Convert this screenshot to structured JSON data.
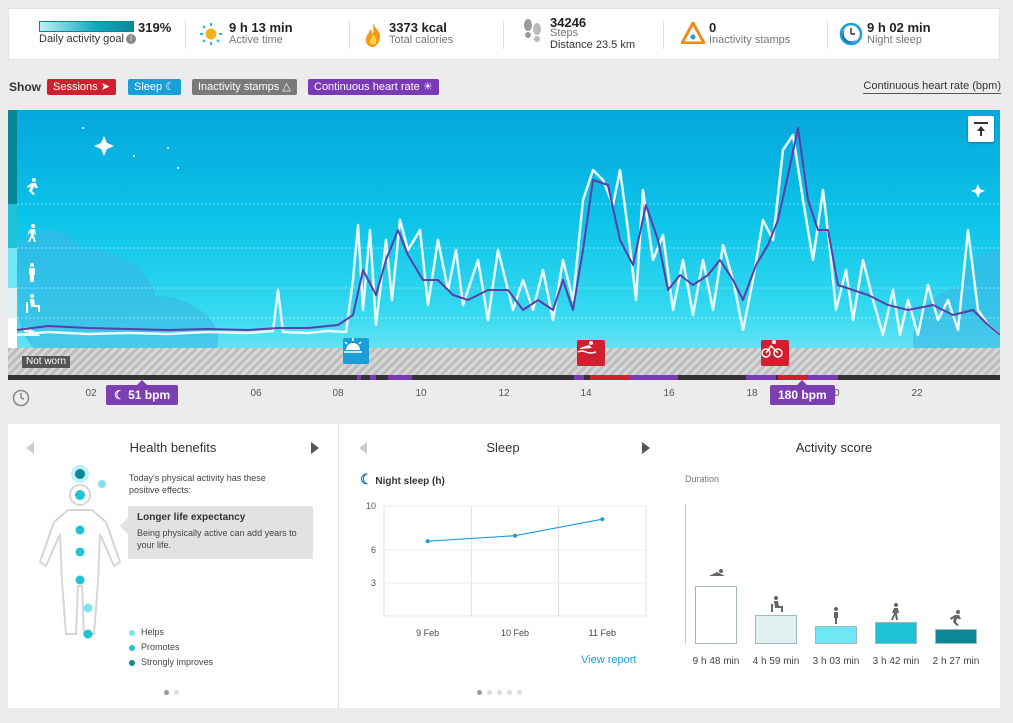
{
  "summary": {
    "goal": {
      "value": "319%",
      "label": "Daily activity goal",
      "info": "i"
    },
    "active_time": {
      "value": "9 h 13 min",
      "label": "Active time"
    },
    "calories": {
      "value": "3373 kcal",
      "label": "Total calories"
    },
    "steps": {
      "value": "34246",
      "label": "Steps",
      "distance": "Distance 23.5 km"
    },
    "inactivity": {
      "value": "0",
      "label": "Inactivity stamps"
    },
    "sleep": {
      "value": "9 h 02 min",
      "label": "Night sleep"
    }
  },
  "filters": {
    "show_label": "Show",
    "chips": [
      "Sessions",
      "Sleep",
      "Inactivity stamps",
      "Continuous heart rate"
    ],
    "selector": "Continuous heart rate (bpm)"
  },
  "timeline": {
    "not_worn": "Not worn",
    "hours": [
      "02",
      "04",
      "06",
      "08",
      "10",
      "12",
      "14",
      "16",
      "18",
      "20",
      "22"
    ],
    "min_bpm": "51 bpm",
    "max_bpm": "180 bpm",
    "colors": {
      "heart_rate": "#5a3fa8",
      "activity": "#e6fafd",
      "sessions": "#d0202e",
      "sleep": "#1a9ed8"
    }
  },
  "health": {
    "title": "Health benefits",
    "intro": "Today's physical activity has these positive effects:",
    "benefit_title": "Longer life expectancy",
    "benefit_text": "Being physically active can add years to your life.",
    "legend": [
      "Helps",
      "Promotes",
      "Strongly improves"
    ],
    "legend_colors": [
      "#7fe3ef",
      "#22c3d6",
      "#0b8795"
    ]
  },
  "sleep_panel": {
    "title": "Sleep",
    "subtitle": "Night sleep (h)",
    "view_report": "View report"
  },
  "activity": {
    "title": "Activity score",
    "duration_label": "Duration",
    "bars": [
      {
        "label": "9 h 48 min",
        "level": "rest",
        "icon": "lying-icon",
        "color": "#ffffff",
        "value": 588
      },
      {
        "label": "4 h 59 min",
        "level": "sitting",
        "icon": "sitting-icon",
        "color": "#dff0f1",
        "value": 299
      },
      {
        "label": "3 h 03 min",
        "level": "low",
        "icon": "standing-icon",
        "color": "#6fe7f4",
        "value": 183
      },
      {
        "label": "3 h 42 min",
        "level": "medium",
        "icon": "walking-icon",
        "color": "#1ec2d5",
        "value": 222
      },
      {
        "label": "2 h 27 min",
        "level": "high",
        "icon": "running-icon",
        "color": "#0b8795",
        "value": 147
      }
    ]
  },
  "chart_data": {
    "type": "line",
    "categories": [
      "9 Feb",
      "10 Feb",
      "11 Feb"
    ],
    "series": [
      {
        "values": [
          6.8,
          7.3,
          8.8
        ]
      }
    ],
    "yticks": [
      "3",
      "6",
      "10"
    ],
    "ylim": [
      0,
      10
    ]
  }
}
